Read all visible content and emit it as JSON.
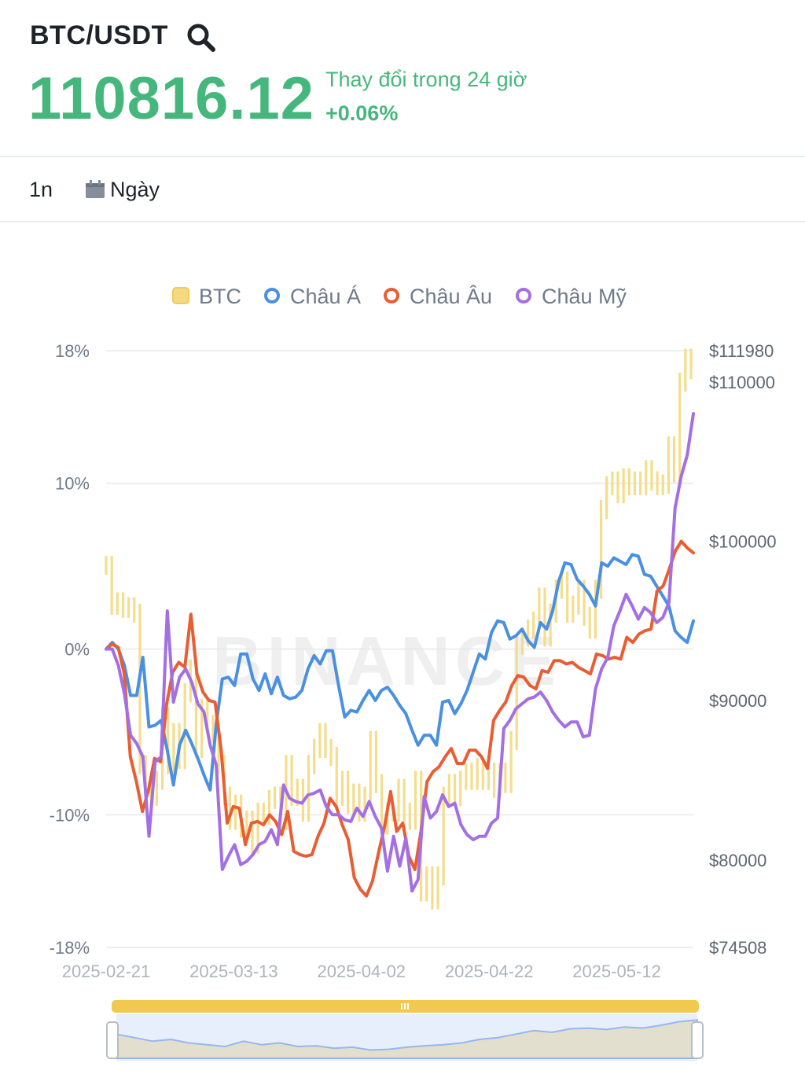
{
  "header": {
    "pair": "BTC/USDT",
    "price": "110816.12",
    "change_label": "Thay đổi trong 24 giờ",
    "change_value": "+0.06%"
  },
  "tabs": {
    "period": "1n",
    "interval": "Ngày"
  },
  "icons": {
    "search": "search-icon",
    "calendar": "calendar-icon"
  },
  "colors": {
    "btc": "#f3d97f",
    "asia": "#4a90e2",
    "europe": "#e95d33",
    "america": "#a36fe3",
    "positive": "#46b77c"
  },
  "watermark": "BINANCE",
  "chart_data": {
    "type": "line",
    "legend": [
      "BTC",
      "Châu Á",
      "Châu Âu",
      "Châu Mỹ"
    ],
    "legend_position": "top-center",
    "left_axis": {
      "ticks": [
        "18%",
        "10%",
        "0%",
        "-10%",
        "-18%"
      ],
      "range": [
        -18,
        18
      ]
    },
    "right_axis": {
      "ticks": [
        "$111980",
        "$110000",
        "$100000",
        "$90000",
        "$80000",
        "$74508"
      ],
      "range": [
        74508,
        111980
      ]
    },
    "x_ticks": [
      "2025-02-21",
      "2025-03-13",
      "2025-04-02",
      "2025-04-22",
      "2025-05-12"
    ],
    "x_range": [
      0,
      92
    ],
    "grid": true,
    "btc_price": [
      98500,
      96000,
      96200,
      95800,
      95900,
      95500,
      86000,
      84500,
      84000,
      85000,
      89000,
      86000,
      88000,
      86300,
      90500,
      92000,
      87000,
      89500,
      88500,
      88000,
      86000,
      84000,
      82500,
      83500,
      82000,
      82500,
      81000,
      83000,
      82800,
      83800,
      84000,
      82500,
      86000,
      84000,
      84500,
      83000,
      86000,
      87000,
      88000,
      87000,
      86500,
      84000,
      85000,
      83500,
      84200,
      83000,
      84000,
      87500,
      84800,
      82200,
      83000,
      83000,
      84500,
      83000,
      82500,
      85000,
      78000,
      79000,
      77500,
      79000,
      84000,
      84800,
      84000,
      85000,
      85500,
      85000,
      85800,
      85000,
      85500,
      84500,
      85500,
      84800,
      87500,
      93500,
      94000,
      94500,
      95000,
      96500,
      94000,
      95500,
      97000,
      97500,
      95500,
      96000,
      97000,
      95300,
      94500,
      97000,
      102000,
      103500,
      103800,
      103000,
      104000,
      103500,
      103800,
      103500,
      104500,
      103800,
      103500,
      103600,
      106000,
      104300,
      110000,
      111500,
      110800
    ],
    "series": [
      {
        "name": "Châu Á",
        "values": [
          0,
          0.4,
          0,
          -1,
          -2.8,
          -2.8,
          -0.5,
          -4.7,
          -4.6,
          -4.3,
          -6.1,
          -8.2,
          -5.8,
          -4.9,
          -5.7,
          -6.6,
          -7.6,
          -8.5,
          -4.5,
          -1.8,
          -1.7,
          -2.2,
          -0.3,
          -0.3,
          -1.8,
          -2.5,
          -1.5,
          -2.7,
          -1.7,
          -2.8,
          -3,
          -2.9,
          -2.5,
          -1.2,
          -0.4,
          -0.9,
          -0.1,
          -0.1,
          -2.2,
          -4.1,
          -3.7,
          -3.8,
          -3.1,
          -2.5,
          -3.1,
          -2.5,
          -2.3,
          -2.8,
          -3.4,
          -3.9,
          -4.9,
          -5.8,
          -5.2,
          -5.2,
          -5.8,
          -3.2,
          -3.1,
          -3.9,
          -3.3,
          -2.5,
          -1.4,
          -0.3,
          -0.6,
          1,
          1.7,
          1.6,
          0.6,
          0.8,
          1.2,
          0.5,
          0.1,
          1.6,
          1.2,
          2.3,
          4.1,
          5.2,
          5.1,
          4.2,
          3.8,
          3.3,
          2.6,
          5.2,
          5,
          5.5,
          5.3,
          5.1,
          5.7,
          5.6,
          4.5,
          4.4,
          3.8,
          3.2,
          2.6,
          1.1,
          0.7,
          0.4,
          1.7
        ]
      },
      {
        "name": "Châu Âu",
        "values": [
          0,
          0.3,
          0.1,
          -1.5,
          -6.5,
          -8,
          -9.8,
          -8.5,
          -6.6,
          -6.8,
          -3.3,
          -1.4,
          -0.8,
          -1.1,
          2.1,
          -1.5,
          -2.6,
          -3.1,
          -3.2,
          -6.1,
          -10.5,
          -9.5,
          -9.6,
          -11.8,
          -10.5,
          -10.4,
          -10.6,
          -10,
          -10.4,
          -11.2,
          -9.8,
          -12.2,
          -12.4,
          -12.5,
          -12.4,
          -11.3,
          -10.5,
          -9,
          -9.5,
          -10.6,
          -11.5,
          -13.8,
          -14.5,
          -14.9,
          -14,
          -12.3,
          -10.7,
          -8.6,
          -11,
          -10.5,
          -12.5,
          -13.3,
          -11,
          -8,
          -7.4,
          -7.1,
          -6.5,
          -6,
          -6.9,
          -6.9,
          -6.1,
          -6.1,
          -6.5,
          -7.2,
          -4.3,
          -3.7,
          -3.2,
          -2.2,
          -1.6,
          -1.7,
          -2.2,
          -2.4,
          -1.3,
          -1.4,
          -0.7,
          -0.7,
          -0.9,
          -0.8,
          -1.1,
          -1.3,
          -1.5,
          -0.3,
          -0.4,
          -0.6,
          -0.5,
          -0.6,
          0.7,
          0.4,
          0.9,
          1.1,
          1.2,
          3.5,
          3.8,
          4.8,
          5.9,
          6.5,
          6.1,
          5.8
        ]
      },
      {
        "name": "Châu Mỹ",
        "values": [
          0,
          0,
          -1,
          -2.7,
          -5.2,
          -5.7,
          -6.5,
          -11.3,
          -6.8,
          -6.5,
          2.3,
          -3.2,
          -1.7,
          -1.2,
          -2,
          -3.3,
          -3.8,
          -5.8,
          -7,
          -13.3,
          -12.5,
          -11.8,
          -13,
          -12.8,
          -12.4,
          -11.8,
          -11.6,
          -10.9,
          -11.8,
          -8.2,
          -9,
          -9.2,
          -9.3,
          -8.8,
          -8.7,
          -8.5,
          -9.5,
          -10,
          -10,
          -10.3,
          -10.4,
          -9.6,
          -10.1,
          -9.2,
          -10.1,
          -10.8,
          -13.4,
          -11.3,
          -13.1,
          -11.4,
          -14.6,
          -13.9,
          -8.9,
          -10.2,
          -9.8,
          -8.8,
          -9.5,
          -9.3,
          -10.6,
          -11.2,
          -11.5,
          -11.3,
          -11.3,
          -10.5,
          -10.2,
          -4.8,
          -4.3,
          -3.6,
          -3.3,
          -3,
          -2.9,
          -2.6,
          -3.1,
          -3.8,
          -4.3,
          -4.7,
          -4.4,
          -4.4,
          -5.3,
          -5.2,
          -2.4,
          -1.2,
          -0.5,
          1.4,
          2.3,
          3.3,
          2.6,
          1.8,
          2.5,
          2.2,
          1.6,
          1.9,
          2.8,
          8.5,
          10.4,
          11.7,
          14.2
        ]
      }
    ],
    "navigator": {
      "handle_icon": "grip-icon"
    }
  }
}
